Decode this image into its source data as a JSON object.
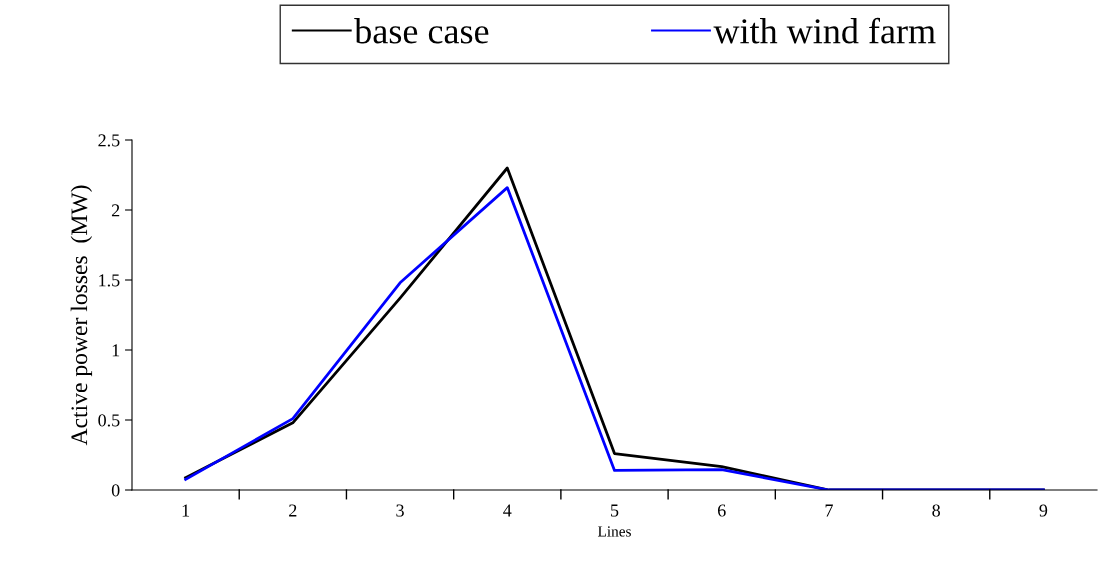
{
  "chart_data": {
    "type": "line",
    "xlabel": "Lines",
    "ylabel": "Active power losses  (MW)",
    "categories": [
      "1",
      "2",
      "3",
      "4",
      "5",
      "6",
      "7",
      "8",
      "9"
    ],
    "series": [
      {
        "name": "base case",
        "color": "#000000",
        "values": [
          0.088,
          0.48,
          1.37,
          2.3,
          0.26,
          0.167,
          0,
          0,
          0
        ]
      },
      {
        "name": "with wind farm",
        "color": "#0000ff",
        "values": [
          0.076,
          0.51,
          1.48,
          2.16,
          0.14,
          0.145,
          0,
          0,
          0
        ]
      }
    ],
    "ylim": [
      0,
      2.5
    ],
    "yticks": [
      0,
      0.5,
      1,
      1.5,
      2,
      2.5
    ],
    "grid": false,
    "legend": "top",
    "marker": "none",
    "line_style": "solid"
  }
}
